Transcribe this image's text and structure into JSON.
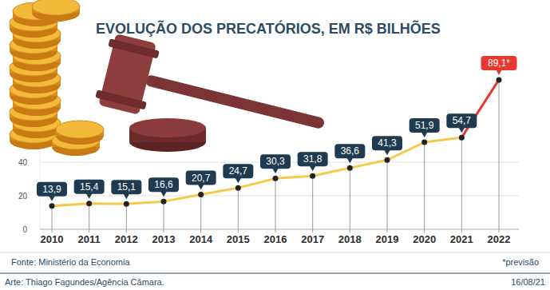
{
  "chart_data": {
    "type": "line",
    "title": "EVOLUÇÃO DOS PRECATÓRIOS, EM R$ BILHÕES",
    "categories": [
      "2010",
      "2011",
      "2012",
      "2013",
      "2014",
      "2015",
      "2016",
      "2017",
      "2018",
      "2019",
      "2020",
      "2021",
      "2022"
    ],
    "values": [
      13.9,
      15.4,
      15.1,
      16.6,
      20.7,
      24.7,
      30.3,
      31.8,
      36.6,
      41.3,
      51.9,
      54.7,
      89.1
    ],
    "value_labels": [
      "13,9",
      "15,4",
      "15,1",
      "16,6",
      "20,7",
      "24,7",
      "30,3",
      "31,8",
      "36,6",
      "41,3",
      "51,9",
      "54,7",
      "89,1*"
    ],
    "color": "#f5c94a",
    "colors": [
      "#1f3b52",
      "#1f3b52",
      "#1f3b52",
      "#1f3b52",
      "#1f3b52",
      "#1f3b52",
      "#1f3b52",
      "#1f3b52",
      "#1f3b52",
      "#1f3b52",
      "#1f3b52",
      "#1f3b52",
      "#e8392f"
    ],
    "marker": "circle",
    "data_labels": true,
    "grid": true,
    "ylim": [
      0,
      110
    ],
    "yticks": [
      0,
      20,
      40
    ],
    "source": "Fonte: Ministério da Economia",
    "note": "*previsão",
    "credit": "Arte: Thiago Fagundes/Agência Câmara.",
    "date": "16/08/21"
  }
}
